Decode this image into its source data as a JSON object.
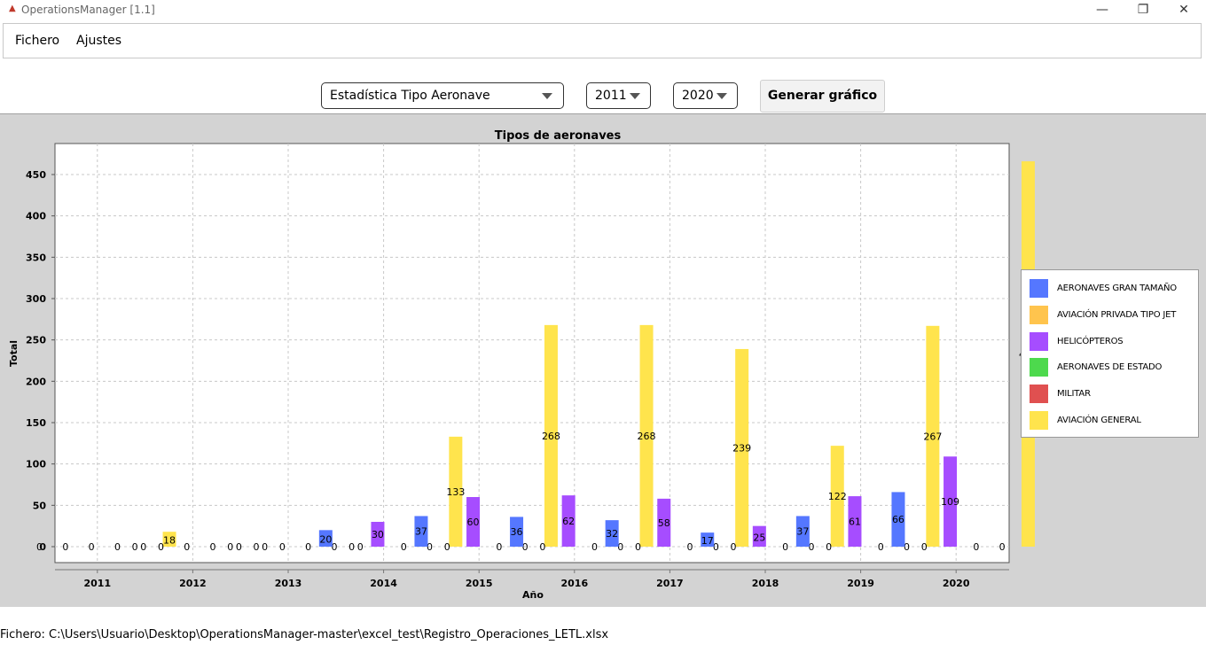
{
  "window": {
    "title": "OperationsManager [1.1]",
    "minimize_glyph": "—",
    "maximize_glyph": "❐",
    "close_glyph": "✕"
  },
  "menu": {
    "items": [
      "Fichero",
      "Ajustes"
    ]
  },
  "controls": {
    "stat_type": "Estadística Tipo Aeronave",
    "year_from": "2011",
    "year_to": "2020",
    "generate_label": "Generar gráfico"
  },
  "status": {
    "file_text": "Fichero: C:\\Users\\Usuario\\Desktop\\OperationsManager-master\\excel_test\\Registro_Operaciones_LETL.xlsx"
  },
  "chart_data": {
    "type": "bar",
    "title": "Tipos de aeronaves",
    "xlabel": "Año",
    "ylabel": "Total",
    "categories": [
      "2011",
      "2012",
      "2013",
      "2014",
      "2015",
      "2016",
      "2017",
      "2018",
      "2019",
      "2020"
    ],
    "ylim": [
      0,
      480
    ],
    "yticks": [
      0,
      50,
      100,
      150,
      200,
      250,
      300,
      350,
      400,
      450
    ],
    "grid": true,
    "legend_position": "right",
    "series": [
      {
        "name": "AERONAVES GRAN TAMAÑO",
        "color": "#5577ff",
        "values": [
          0,
          0,
          0,
          20,
          37,
          36,
          32,
          17,
          37,
          66
        ]
      },
      {
        "name": "AVIACIÓN PRIVADA TIPO JET",
        "color": "#ffc44d",
        "values": [
          0,
          0,
          0,
          0,
          0,
          0,
          0,
          0,
          0,
          0
        ]
      },
      {
        "name": "HELICÓPTEROS",
        "color": "#a64dff",
        "values": [
          0,
          0,
          0,
          30,
          60,
          62,
          58,
          25,
          61,
          109
        ]
      },
      {
        "name": "AERONAVES DE ESTADO",
        "color": "#4dd94d",
        "values": [
          0,
          0,
          0,
          0,
          0,
          0,
          0,
          0,
          0,
          0
        ]
      },
      {
        "name": "MILITAR",
        "color": "#e05050",
        "values": [
          0,
          0,
          0,
          0,
          0,
          0,
          0,
          0,
          0,
          0
        ]
      },
      {
        "name": "AVIACIÓN GENERAL",
        "color": "#ffe44d",
        "values": [
          18,
          0,
          0,
          133,
          268,
          268,
          239,
          122,
          267,
          466
        ]
      }
    ]
  }
}
